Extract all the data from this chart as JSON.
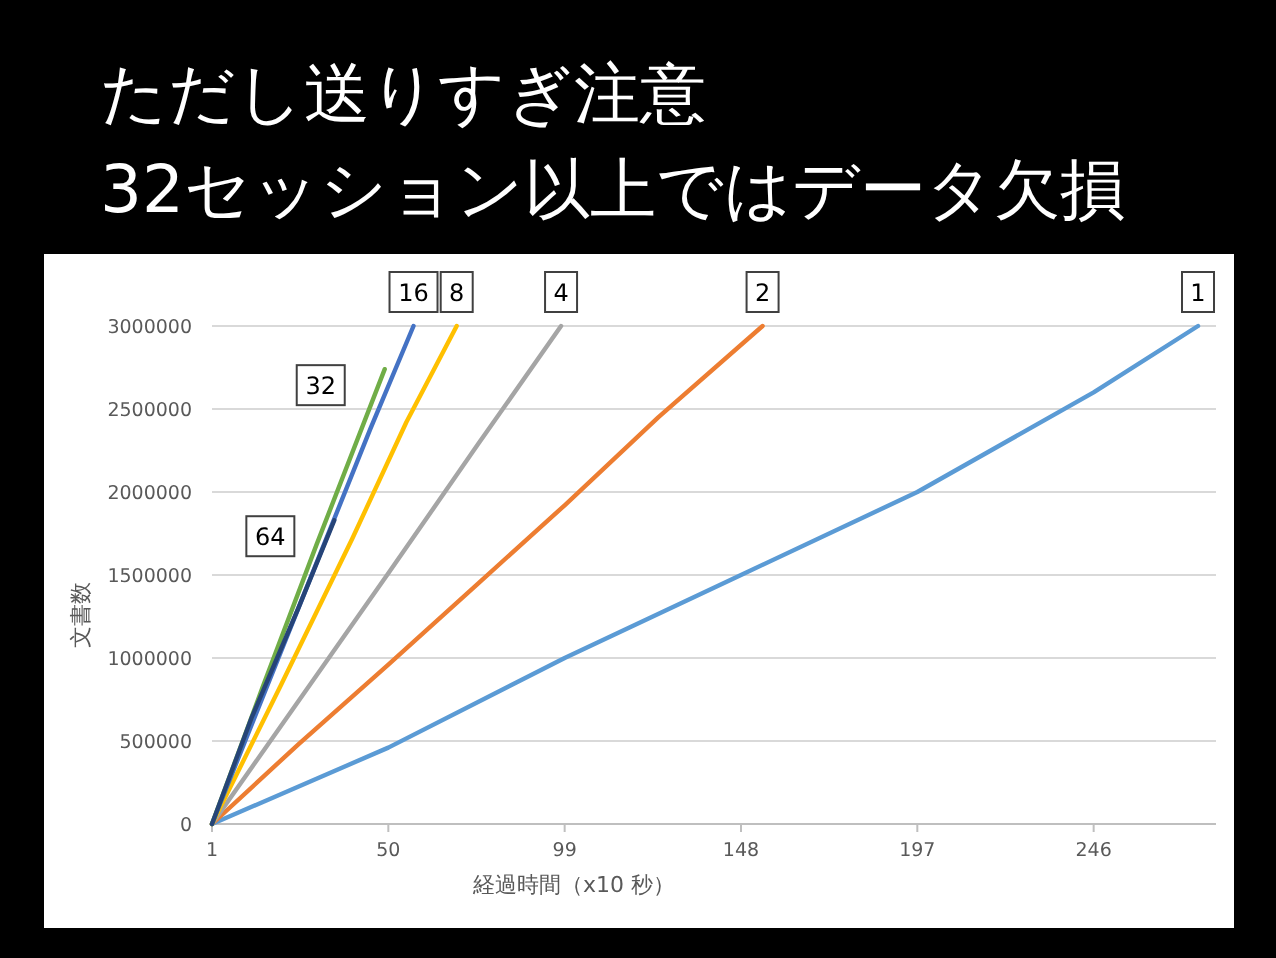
{
  "chart_data": {
    "type": "line",
    "title": "ただし送りすぎ注意",
    "subtitle": "32セッション以上ではデータ欠損",
    "xlabel": "経過時間（x10  秒）",
    "ylabel": "文書数",
    "xlim": [
      1,
      280
    ],
    "xticks": [
      1,
      50,
      99,
      148,
      197,
      246
    ],
    "ylim": [
      0,
      3000000
    ],
    "yticks": [
      0,
      500000,
      1000000,
      1500000,
      2000000,
      2500000,
      3000000
    ],
    "grid": "y",
    "marker": "none",
    "line_style": "solid",
    "series": [
      {
        "name": "1",
        "color": "#5b9bd5",
        "x": [
          1,
          50,
          99,
          148,
          197,
          246,
          275
        ],
        "values": [
          0,
          460000,
          1000000,
          1500000,
          2000000,
          2600000,
          3000000
        ]
      },
      {
        "name": "2",
        "color": "#ed7d31",
        "x": [
          1,
          25,
          50,
          75,
          99,
          125,
          154
        ],
        "values": [
          0,
          480000,
          960000,
          1450000,
          1920000,
          2450000,
          3000000
        ]
      },
      {
        "name": "4",
        "color": "#a5a5a5",
        "x": [
          1,
          25,
          50,
          75,
          98
        ],
        "values": [
          0,
          740000,
          1510000,
          2290000,
          3000000
        ]
      },
      {
        "name": "8",
        "color": "#ffc000",
        "x": [
          1,
          20,
          40,
          55,
          69
        ],
        "values": [
          0,
          830000,
          1720000,
          2420000,
          3000000
        ]
      },
      {
        "name": "16",
        "color": "#4472c4",
        "x": [
          1,
          15,
          30,
          45,
          57
        ],
        "values": [
          0,
          760000,
          1570000,
          2380000,
          3000000
        ]
      },
      {
        "name": "32",
        "color": "#70ad47",
        "x": [
          1,
          15,
          30,
          49
        ],
        "values": [
          0,
          820000,
          1680000,
          2740000
        ]
      },
      {
        "name": "64",
        "color": "#264478",
        "x": [
          1,
          12,
          25,
          35
        ],
        "values": [
          0,
          640000,
          1300000,
          1830000
        ]
      }
    ]
  }
}
